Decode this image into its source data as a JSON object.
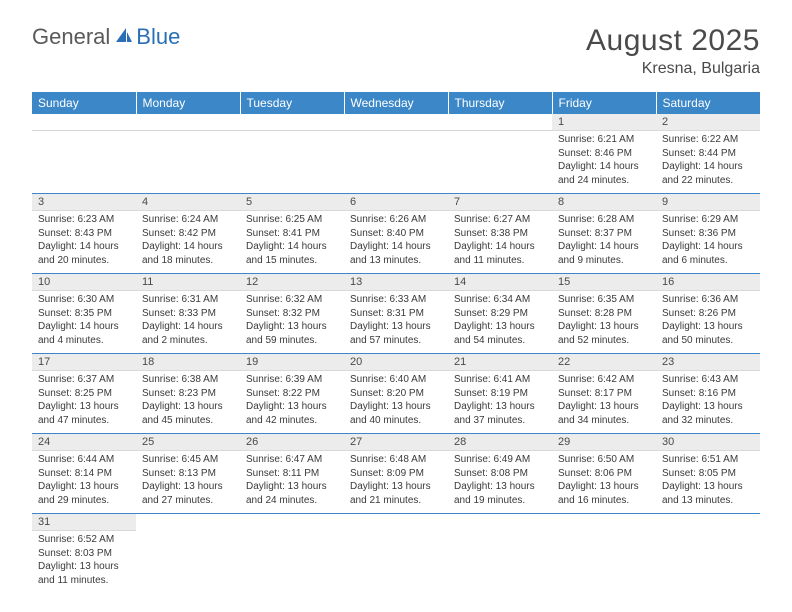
{
  "logo": {
    "part1": "General",
    "part2": "Blue"
  },
  "title": "August 2025",
  "location": "Kresna, Bulgaria",
  "colors": {
    "header_bg": "#3b87c8",
    "header_text": "#ffffff",
    "daynum_bg": "#ececec",
    "rule": "#3b87c8",
    "text": "#4a4a4a"
  },
  "weekdays": [
    "Sunday",
    "Monday",
    "Tuesday",
    "Wednesday",
    "Thursday",
    "Friday",
    "Saturday"
  ],
  "weeks": [
    [
      null,
      null,
      null,
      null,
      null,
      {
        "n": "1",
        "sr": "6:21 AM",
        "ss": "8:46 PM",
        "dl": "14 hours and 24 minutes."
      },
      {
        "n": "2",
        "sr": "6:22 AM",
        "ss": "8:44 PM",
        "dl": "14 hours and 22 minutes."
      }
    ],
    [
      {
        "n": "3",
        "sr": "6:23 AM",
        "ss": "8:43 PM",
        "dl": "14 hours and 20 minutes."
      },
      {
        "n": "4",
        "sr": "6:24 AM",
        "ss": "8:42 PM",
        "dl": "14 hours and 18 minutes."
      },
      {
        "n": "5",
        "sr": "6:25 AM",
        "ss": "8:41 PM",
        "dl": "14 hours and 15 minutes."
      },
      {
        "n": "6",
        "sr": "6:26 AM",
        "ss": "8:40 PM",
        "dl": "14 hours and 13 minutes."
      },
      {
        "n": "7",
        "sr": "6:27 AM",
        "ss": "8:38 PM",
        "dl": "14 hours and 11 minutes."
      },
      {
        "n": "8",
        "sr": "6:28 AM",
        "ss": "8:37 PM",
        "dl": "14 hours and 9 minutes."
      },
      {
        "n": "9",
        "sr": "6:29 AM",
        "ss": "8:36 PM",
        "dl": "14 hours and 6 minutes."
      }
    ],
    [
      {
        "n": "10",
        "sr": "6:30 AM",
        "ss": "8:35 PM",
        "dl": "14 hours and 4 minutes."
      },
      {
        "n": "11",
        "sr": "6:31 AM",
        "ss": "8:33 PM",
        "dl": "14 hours and 2 minutes."
      },
      {
        "n": "12",
        "sr": "6:32 AM",
        "ss": "8:32 PM",
        "dl": "13 hours and 59 minutes."
      },
      {
        "n": "13",
        "sr": "6:33 AM",
        "ss": "8:31 PM",
        "dl": "13 hours and 57 minutes."
      },
      {
        "n": "14",
        "sr": "6:34 AM",
        "ss": "8:29 PM",
        "dl": "13 hours and 54 minutes."
      },
      {
        "n": "15",
        "sr": "6:35 AM",
        "ss": "8:28 PM",
        "dl": "13 hours and 52 minutes."
      },
      {
        "n": "16",
        "sr": "6:36 AM",
        "ss": "8:26 PM",
        "dl": "13 hours and 50 minutes."
      }
    ],
    [
      {
        "n": "17",
        "sr": "6:37 AM",
        "ss": "8:25 PM",
        "dl": "13 hours and 47 minutes."
      },
      {
        "n": "18",
        "sr": "6:38 AM",
        "ss": "8:23 PM",
        "dl": "13 hours and 45 minutes."
      },
      {
        "n": "19",
        "sr": "6:39 AM",
        "ss": "8:22 PM",
        "dl": "13 hours and 42 minutes."
      },
      {
        "n": "20",
        "sr": "6:40 AM",
        "ss": "8:20 PM",
        "dl": "13 hours and 40 minutes."
      },
      {
        "n": "21",
        "sr": "6:41 AM",
        "ss": "8:19 PM",
        "dl": "13 hours and 37 minutes."
      },
      {
        "n": "22",
        "sr": "6:42 AM",
        "ss": "8:17 PM",
        "dl": "13 hours and 34 minutes."
      },
      {
        "n": "23",
        "sr": "6:43 AM",
        "ss": "8:16 PM",
        "dl": "13 hours and 32 minutes."
      }
    ],
    [
      {
        "n": "24",
        "sr": "6:44 AM",
        "ss": "8:14 PM",
        "dl": "13 hours and 29 minutes."
      },
      {
        "n": "25",
        "sr": "6:45 AM",
        "ss": "8:13 PM",
        "dl": "13 hours and 27 minutes."
      },
      {
        "n": "26",
        "sr": "6:47 AM",
        "ss": "8:11 PM",
        "dl": "13 hours and 24 minutes."
      },
      {
        "n": "27",
        "sr": "6:48 AM",
        "ss": "8:09 PM",
        "dl": "13 hours and 21 minutes."
      },
      {
        "n": "28",
        "sr": "6:49 AM",
        "ss": "8:08 PM",
        "dl": "13 hours and 19 minutes."
      },
      {
        "n": "29",
        "sr": "6:50 AM",
        "ss": "8:06 PM",
        "dl": "13 hours and 16 minutes."
      },
      {
        "n": "30",
        "sr": "6:51 AM",
        "ss": "8:05 PM",
        "dl": "13 hours and 13 minutes."
      }
    ],
    [
      {
        "n": "31",
        "sr": "6:52 AM",
        "ss": "8:03 PM",
        "dl": "13 hours and 11 minutes."
      },
      null,
      null,
      null,
      null,
      null,
      null
    ]
  ],
  "labels": {
    "sunrise": "Sunrise: ",
    "sunset": "Sunset: ",
    "daylight": "Daylight: "
  }
}
